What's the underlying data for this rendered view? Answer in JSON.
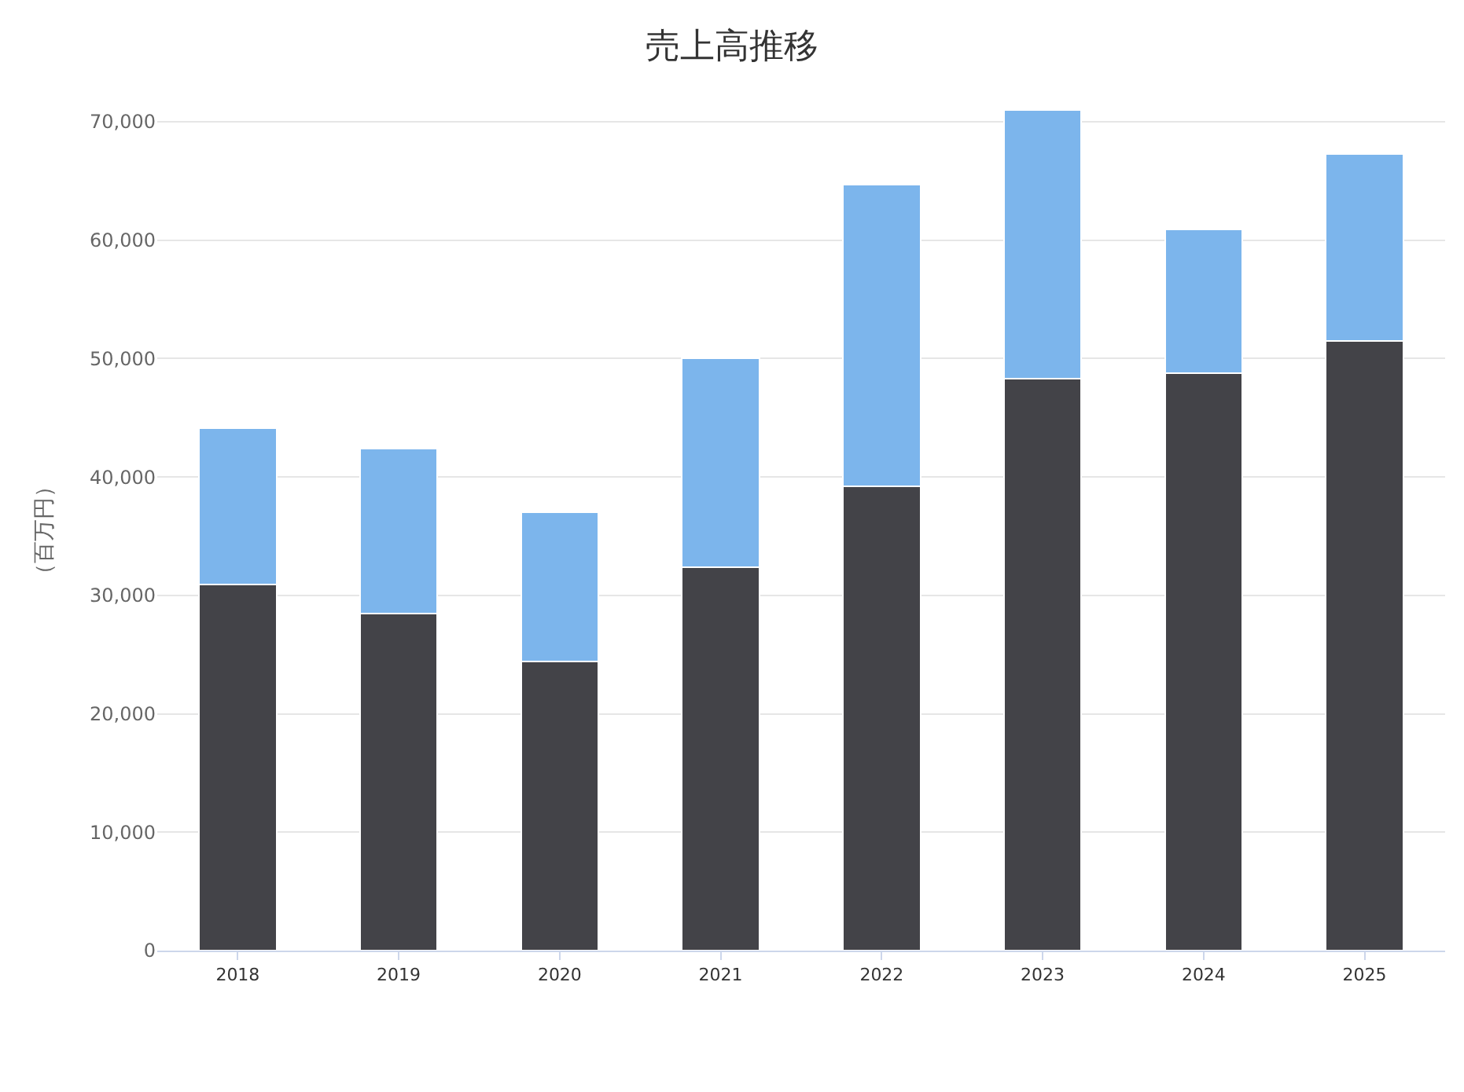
{
  "chart_data": {
    "type": "bar",
    "title": "売上高推移",
    "ylabel": "（百万円）",
    "stacked": true,
    "categories": [
      "2018",
      "2019",
      "2020",
      "2021",
      "2022",
      "2023",
      "2024",
      "2025"
    ],
    "series": [
      {
        "color": "#434348",
        "values": [
          30900.0,
          28500.0,
          24400.0,
          32400.0,
          39200.0,
          48300.0,
          48800.0,
          51500.0
        ]
      },
      {
        "color": "#7cb5ec",
        "values": [
          13200.0,
          13900.0,
          12600.0,
          17600.0,
          25500.0,
          22700.0,
          12100.0,
          15800.0
        ]
      }
    ],
    "ylim": [
      0,
      71000
    ],
    "yticks": [
      {
        "value": 0,
        "label": "0"
      },
      {
        "value": 10000,
        "label": "10,000"
      },
      {
        "value": 20000,
        "label": "20,000"
      },
      {
        "value": 30000,
        "label": "30,000"
      },
      {
        "value": 40000,
        "label": "40,000"
      },
      {
        "value": 50000,
        "label": "50,000"
      },
      {
        "value": 60000,
        "label": "60,000"
      },
      {
        "value": 70000,
        "label": "70,000"
      }
    ],
    "grid": "y"
  }
}
